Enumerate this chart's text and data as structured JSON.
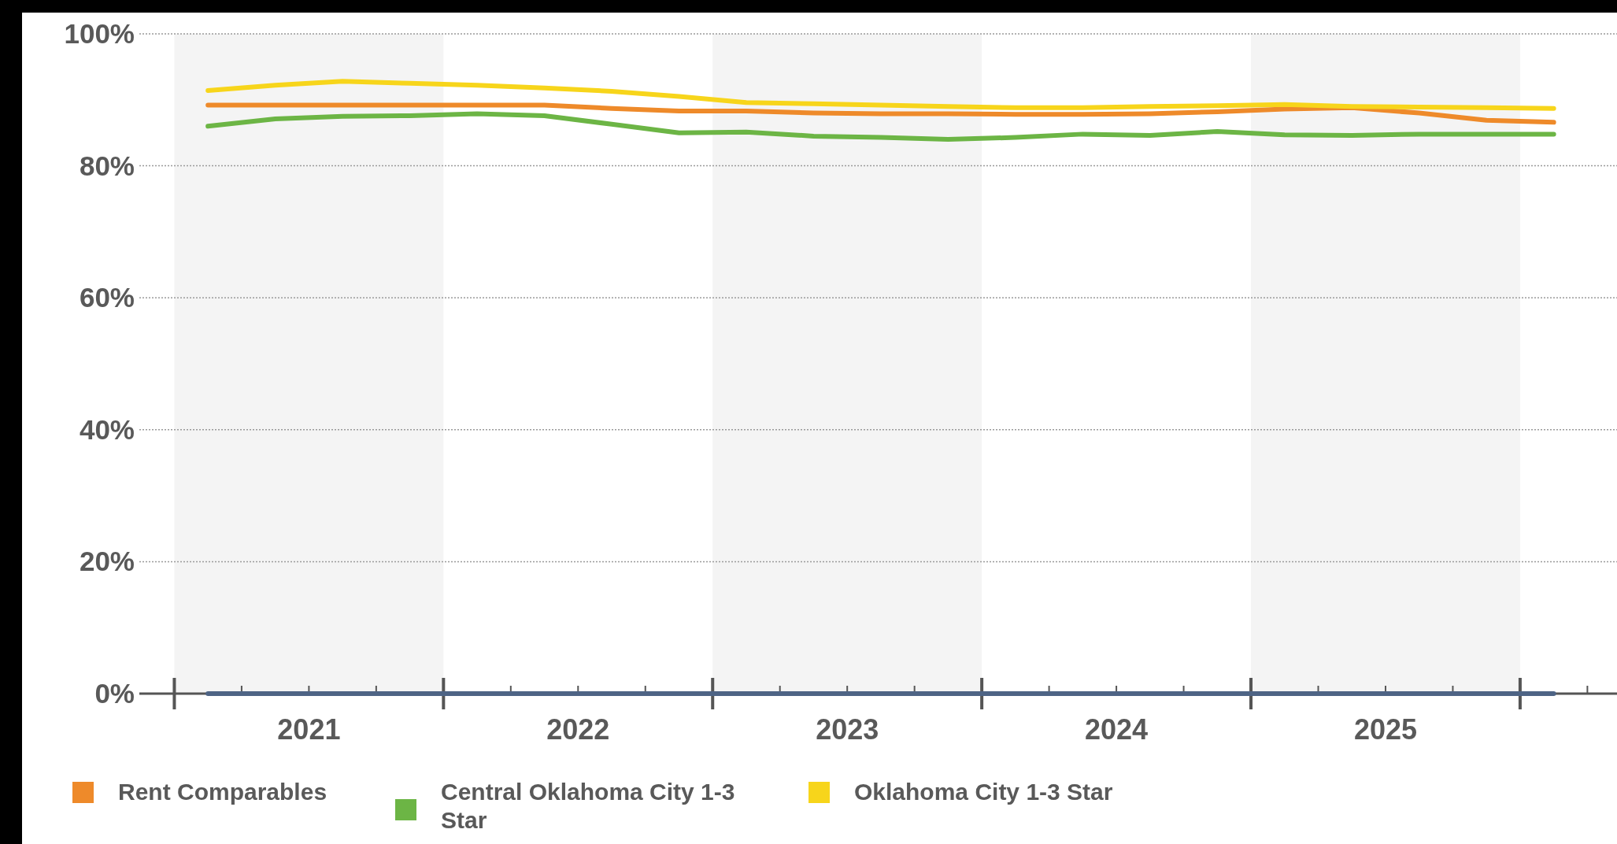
{
  "chart_data": {
    "type": "line",
    "x": [
      2021.125,
      2021.375,
      2021.625,
      2021.875,
      2022.125,
      2022.375,
      2022.625,
      2022.875,
      2023.125,
      2023.375,
      2023.625,
      2023.875,
      2024.125,
      2024.375,
      2024.625,
      2024.875,
      2025.125,
      2025.375,
      2025.625,
      2025.875,
      2026.125
    ],
    "series": [
      {
        "color": "#4e6485",
        "values": [
          0,
          0,
          0,
          0,
          0,
          0,
          0,
          0,
          0,
          0,
          0,
          0,
          0,
          0,
          0,
          0,
          0,
          0,
          0,
          0,
          0
        ]
      },
      {
        "name": "Rent Comparables",
        "color": "#ee8a2a",
        "values": [
          89.2,
          89.2,
          89.2,
          89.2,
          89.2,
          89.2,
          88.7,
          88.3,
          88.3,
          88.0,
          87.9,
          87.9,
          87.8,
          87.8,
          87.9,
          88.2,
          88.6,
          88.8,
          88.0,
          86.9,
          86.6
        ]
      },
      {
        "name": "Central Oklahoma City 1-3 Star",
        "color": "#6cb545",
        "values": [
          86.0,
          87.1,
          87.5,
          87.6,
          87.9,
          87.6,
          86.3,
          85.0,
          85.1,
          84.5,
          84.3,
          84.0,
          84.3,
          84.8,
          84.6,
          85.2,
          84.7,
          84.6,
          84.8,
          84.8,
          84.8
        ]
      },
      {
        "name": "Oklahoma City 1-3 Star",
        "color": "#f7d51b",
        "values": [
          91.4,
          92.2,
          92.8,
          92.5,
          92.2,
          91.8,
          91.3,
          90.5,
          89.6,
          89.4,
          89.2,
          89.0,
          88.8,
          88.8,
          89.0,
          89.1,
          89.3,
          89.0,
          88.9,
          88.8,
          88.7
        ]
      }
    ],
    "xlim": [
      2020.87,
      2026.36
    ],
    "xticks": [
      {
        "value": 2021,
        "label": null
      },
      {
        "value": 2021.25,
        "label": null
      },
      {
        "value": 2021.5,
        "label": "2021"
      },
      {
        "value": 2021.75,
        "label": null
      },
      {
        "value": 2022,
        "label": null
      },
      {
        "value": 2022.25,
        "label": null
      },
      {
        "value": 2022.5,
        "label": "2022"
      },
      {
        "value": 2022.75,
        "label": null
      },
      {
        "value": 2023,
        "label": null
      },
      {
        "value": 2023.25,
        "label": null
      },
      {
        "value": 2023.5,
        "label": "2023"
      },
      {
        "value": 2023.75,
        "label": null
      },
      {
        "value": 2024,
        "label": null
      },
      {
        "value": 2024.25,
        "label": null
      },
      {
        "value": 2024.5,
        "label": "2024"
      },
      {
        "value": 2024.75,
        "label": null
      },
      {
        "value": 2025,
        "label": null
      },
      {
        "value": 2025.25,
        "label": null
      },
      {
        "value": 2025.5,
        "label": "2025"
      },
      {
        "value": 2025.75,
        "label": null
      },
      {
        "value": 2026,
        "label": null
      },
      {
        "value": 2026.25,
        "label": null
      }
    ],
    "ylim": [
      0,
      100
    ],
    "yticks": [
      {
        "value": 0,
        "label": "0%"
      },
      {
        "value": 20,
        "label": "20%"
      },
      {
        "value": 40,
        "label": "40%"
      },
      {
        "value": 60,
        "label": "60%"
      },
      {
        "value": 80,
        "label": "80%"
      },
      {
        "value": 100,
        "label": "100%"
      }
    ],
    "bands": [
      {
        "axis": "x",
        "from": 2021,
        "to": 2022,
        "color": "#f4f4f4"
      },
      {
        "axis": "x",
        "from": 2023,
        "to": 2024,
        "color": "#f4f4f4"
      },
      {
        "axis": "x",
        "from": 2025,
        "to": 2026,
        "color": "#f4f4f4"
      }
    ],
    "grid": "y",
    "legend": "bottom",
    "marker": "none",
    "line_style": "solid"
  }
}
